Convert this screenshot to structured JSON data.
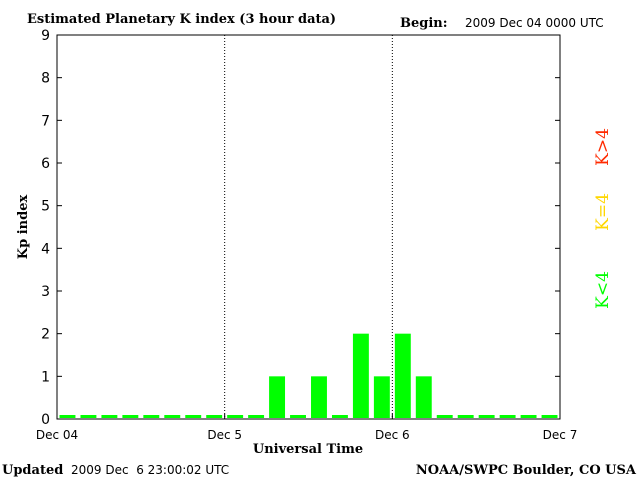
{
  "chart_data": {
    "type": "bar",
    "title": "Estimated Planetary K index (3 hour data)",
    "begin_label": "Begin:",
    "begin_value": "2009 Dec 04 0000 UTC",
    "xlabel": "Universal Time",
    "ylabel": "Kp index",
    "ylim": [
      0,
      9
    ],
    "yticks": [
      "0",
      "1",
      "2",
      "3",
      "4",
      "5",
      "6",
      "7",
      "8",
      "9"
    ],
    "xticks": [
      "Dec 04",
      "Dec 5",
      "Dec 6",
      "Dec 7"
    ],
    "interval_hours": 3,
    "values": [
      0,
      0,
      0,
      0,
      0,
      0,
      0,
      0,
      0,
      0,
      1,
      0,
      1,
      0,
      2,
      1,
      2,
      1,
      0,
      0,
      0,
      0,
      0,
      0
    ],
    "legend": [
      "K<4",
      "K=4",
      "K>4"
    ],
    "colors": {
      "low": "#00ff00",
      "equal": "#ffd700",
      "high": "#ff2a00",
      "axis": "#000000",
      "day_divider": "#000000"
    },
    "grid": false
  },
  "footer": {
    "updated_label": "Updated",
    "updated_value": "2009 Dec  6 23:00:02 UTC",
    "credit": "NOAA/SWPC Boulder, CO USA"
  }
}
